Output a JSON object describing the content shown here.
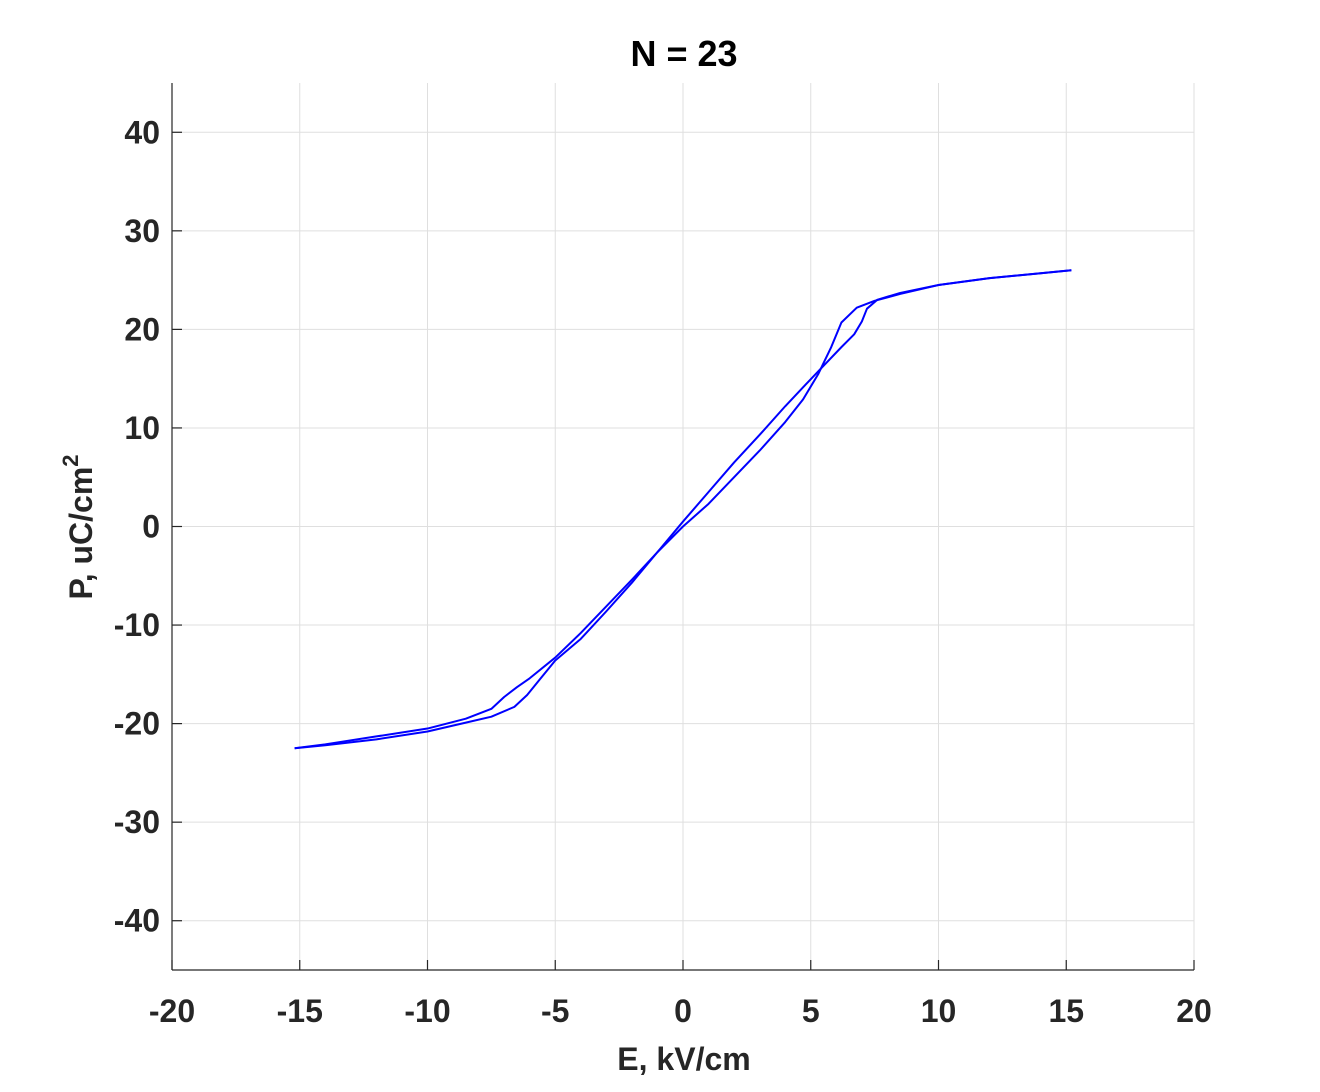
{
  "chart_data": {
    "type": "line",
    "title": "N = 23",
    "xlabel": "E, kV/cm",
    "ylabel": "P, uC/cm",
    "ylabel_superscript": "2",
    "xlim": [
      -20,
      20
    ],
    "ylim": [
      -45,
      45
    ],
    "xticks": [
      -20,
      -15,
      -10,
      -5,
      0,
      5,
      10,
      15,
      20
    ],
    "yticks": [
      -40,
      -30,
      -20,
      -10,
      0,
      10,
      20,
      30,
      40
    ],
    "grid": true,
    "line_color": "#0000ff",
    "series": [
      {
        "x": [
          -15.2,
          -14,
          -12,
          -10,
          -8.5,
          -7.5,
          -7.0,
          -6.5,
          -6.0,
          -5.0,
          -4.0,
          -3.0,
          -2.0,
          -1.0,
          0,
          1,
          2,
          3,
          4,
          4.7,
          5.3,
          5.8,
          6.2,
          6.8,
          7.5,
          8.5,
          10,
          12,
          14,
          15.2
        ],
        "y": [
          -22.5,
          -22.1,
          -21.3,
          -20.5,
          -19.5,
          -18.5,
          -17.3,
          -16.3,
          -15.4,
          -13.3,
          -10.8,
          -8.1,
          -5.4,
          -2.6,
          0,
          2.3,
          5.0,
          7.7,
          10.6,
          12.9,
          15.5,
          18.2,
          20.7,
          22.2,
          22.9,
          23.6,
          24.5,
          25.2,
          25.7,
          26.0
        ]
      },
      {
        "x": [
          15.2,
          14,
          12,
          10,
          8.5,
          7.6,
          7.2,
          7.0,
          6.7,
          6.2,
          5.5,
          4.8,
          4.0,
          3.0,
          2.0,
          1.0,
          0,
          -1,
          -2,
          -3,
          -4,
          -5,
          -5.6,
          -6.1,
          -6.6,
          -7.5,
          -8.5,
          -10,
          -12,
          -14,
          -15.2
        ],
        "y": [
          26.0,
          25.7,
          25.2,
          24.5,
          23.7,
          23.0,
          22.1,
          20.8,
          19.5,
          18.2,
          16.3,
          14.4,
          12.2,
          9.3,
          6.5,
          3.5,
          0.5,
          -2.6,
          -5.7,
          -8.6,
          -11.4,
          -13.6,
          -15.5,
          -17.1,
          -18.3,
          -19.3,
          -19.9,
          -20.8,
          -21.6,
          -22.2,
          -22.5
        ]
      }
    ]
  }
}
